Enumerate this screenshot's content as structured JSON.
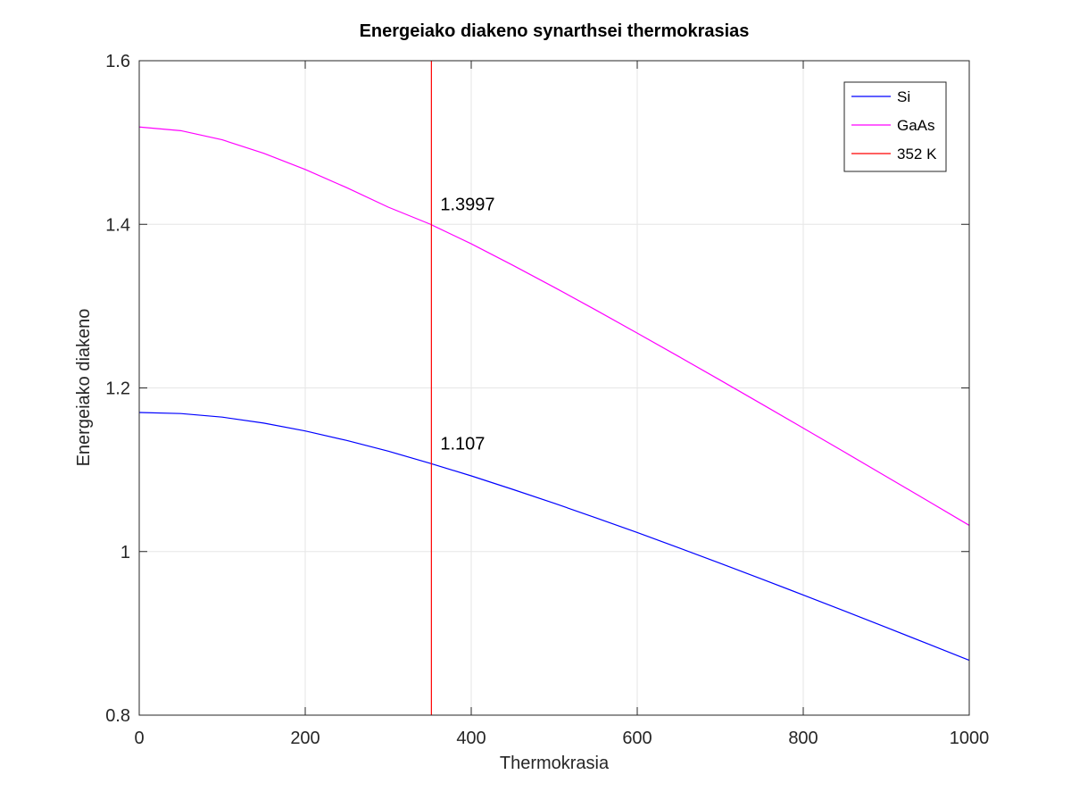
{
  "chart_data": {
    "type": "line",
    "title": "Energeiako diakeno synarthsei thermokrasias",
    "xlabel": "Thermokrasia",
    "ylabel": "Energeiako diakeno",
    "xlim": [
      0,
      1000
    ],
    "ylim": [
      0.8,
      1.6
    ],
    "xticks": [
      0,
      200,
      400,
      600,
      800,
      1000
    ],
    "yticks": [
      0.8,
      1,
      1.2,
      1.4,
      1.6
    ],
    "xtick_labels": [
      "0",
      "200",
      "400",
      "600",
      "800",
      "1000"
    ],
    "ytick_labels": [
      "0.8",
      "1",
      "1.2",
      "1.4",
      "1.6"
    ],
    "grid": true,
    "legend_position": "top-right",
    "series": [
      {
        "name": "Si",
        "color": "#0000ff",
        "x": [
          0,
          50,
          100,
          150,
          200,
          250,
          300,
          350,
          400,
          450,
          500,
          550,
          600,
          650,
          700,
          750,
          800,
          850,
          900,
          950,
          1000
        ],
        "y": [
          1.17,
          1.1687,
          1.1643,
          1.157,
          1.1474,
          1.1358,
          1.1227,
          1.108,
          1.0925,
          1.076,
          1.059,
          1.0413,
          1.0232,
          1.0046,
          0.9856,
          0.9664,
          0.9469,
          0.9272,
          0.9073,
          0.8872,
          0.867
        ]
      },
      {
        "name": "GaAs",
        "color": "#ff00ff",
        "x": [
          0,
          50,
          100,
          150,
          200,
          250,
          300,
          350,
          400,
          450,
          500,
          550,
          600,
          650,
          700,
          750,
          800,
          850,
          900,
          950,
          1000
        ],
        "y": [
          1.519,
          1.5145,
          1.5033,
          1.4868,
          1.467,
          1.4448,
          1.421,
          1.4004,
          1.3762,
          1.35,
          1.323,
          1.2953,
          1.267,
          1.2384,
          1.2095,
          1.1803,
          1.1509,
          1.1214,
          1.0917,
          1.0619,
          1.032
        ]
      },
      {
        "name": "352 K",
        "color": "#ff0000",
        "x": [
          352,
          352
        ],
        "y": [
          0.8,
          1.6
        ]
      }
    ],
    "annotations": [
      {
        "text": "1.3997",
        "x": 352,
        "y": 1.3997
      },
      {
        "text": "1.107",
        "x": 352,
        "y": 1.107
      }
    ]
  }
}
